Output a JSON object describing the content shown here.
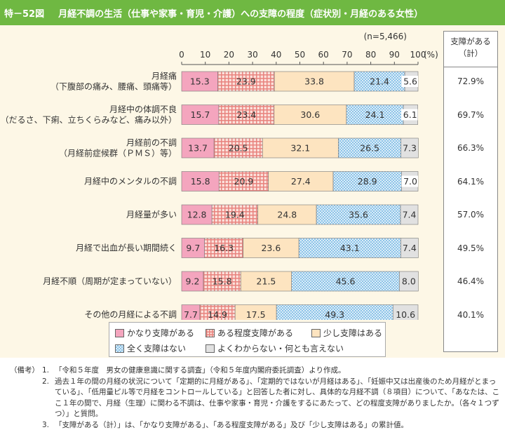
{
  "figure": {
    "number": "特－52図",
    "title": "月経不調の生活（仕事や家事・育児・介護）への支障の程度（症状別・月経のある女性）"
  },
  "chart_data": {
    "type": "bar",
    "orientation": "horizontal",
    "stacked": true,
    "sample_size": "(n=5,466)",
    "unit": "(%)",
    "xlim": [
      0,
      100
    ],
    "xticks": [
      "0",
      "10",
      "20",
      "30",
      "40",
      "50",
      "60",
      "70",
      "80",
      "90",
      "100"
    ],
    "categories": [
      [
        "月経痛",
        "（下腹部の痛み、腰痛、頭痛等）"
      ],
      [
        "月経中の体調不良",
        "（だるさ、下痢、立ちくらみなど、痛み以外）"
      ],
      [
        "月経前の不調",
        "（月経前症候群（ＰＭＳ）等）"
      ],
      [
        "月経中のメンタルの不調"
      ],
      [
        "月経量が多い"
      ],
      [
        "月経で出血が長い期間続く"
      ],
      [
        "月経不順（周期が定まっていない）"
      ],
      [
        "その他の月経による不調"
      ]
    ],
    "series": [
      {
        "name": "かなり支障がある",
        "color": "#f4a5be",
        "pattern": "solid",
        "values": [
          15.3,
          15.7,
          13.7,
          15.8,
          12.8,
          9.7,
          9.2,
          7.7
        ]
      },
      {
        "name": "ある程度支障がある",
        "color": "#e8837e",
        "pattern": "grid",
        "values": [
          23.9,
          23.4,
          20.5,
          20.9,
          19.4,
          16.3,
          15.8,
          14.9
        ]
      },
      {
        "name": "少し支障はある",
        "color": "#fde4c0",
        "pattern": "solid",
        "values": [
          33.8,
          30.6,
          32.1,
          27.4,
          24.8,
          23.6,
          21.5,
          17.5
        ]
      },
      {
        "name": "全く支障はない",
        "color": "#8cc3e8",
        "pattern": "checker",
        "values": [
          21.4,
          24.1,
          26.5,
          28.9,
          35.6,
          43.1,
          45.6,
          49.3
        ]
      },
      {
        "name": "よくわからない・何とも言えない",
        "color": "#e1e1e1",
        "pattern": "solid",
        "values": [
          5.6,
          6.1,
          7.3,
          7.0,
          7.4,
          7.4,
          8.0,
          10.6
        ]
      }
    ],
    "value_labels": [
      [
        "15.3",
        "23.9",
        "33.8",
        "21.4",
        "5.6"
      ],
      [
        "15.7",
        "23.4",
        "30.6",
        "24.1",
        "6.1"
      ],
      [
        "13.7",
        "20.5",
        "32.1",
        "26.5",
        "7.3"
      ],
      [
        "15.8",
        "20.9",
        "27.4",
        "28.9",
        "7.0"
      ],
      [
        "12.8",
        "19.4",
        "24.8",
        "35.6",
        "7.4"
      ],
      [
        "9.7",
        "16.3",
        "23.6",
        "43.1",
        "7.4"
      ],
      [
        "9.2",
        "15.8",
        "21.5",
        "45.6",
        "8.0"
      ],
      [
        "7.7",
        "14.9",
        "17.5",
        "49.3",
        "10.6"
      ]
    ],
    "legend_position": "bottom"
  },
  "summary": {
    "header_line1": "支障がある",
    "header_line2": "（計）",
    "values": [
      "72.9%",
      "69.7%",
      "66.3%",
      "64.1%",
      "57.0%",
      "49.5%",
      "46.4%",
      "40.1%"
    ]
  },
  "legend": {
    "row1": [
      "かなり支障がある",
      "ある程度支障がある",
      "少し支障はある"
    ],
    "row2": [
      "全く支障はない",
      "よくわからない・何とも言えない"
    ]
  },
  "notes": {
    "prefix": "（備考）",
    "items": [
      {
        "num": "1.",
        "text": "「令和５年度　男女の健康意識に関する調査」（令和５年度内閣府委託調査）より作成。"
      },
      {
        "num": "2.",
        "text": "過去１年の間の月経の状況について「定期的に月経がある」、「定期的ではないが月経はある」、「妊娠中又は出産後のため月経がとまっている」、「低用量ピル等で月経をコントロールしている」と回答した者に対し、具体的な月経不調（８項目）について、「あなたは、ここ１年の間で、月経（生理）に関わる不調は、仕事や家事・育児・介護をするにあたって、どの程度支障がありましたか。（各々１つずつ）」と質問。"
      },
      {
        "num": "3.",
        "text": "「支障がある（計）」は、「かなり支障がある」、「ある程度支障がある」及び「少し支障はある」の累計値。"
      }
    ]
  }
}
